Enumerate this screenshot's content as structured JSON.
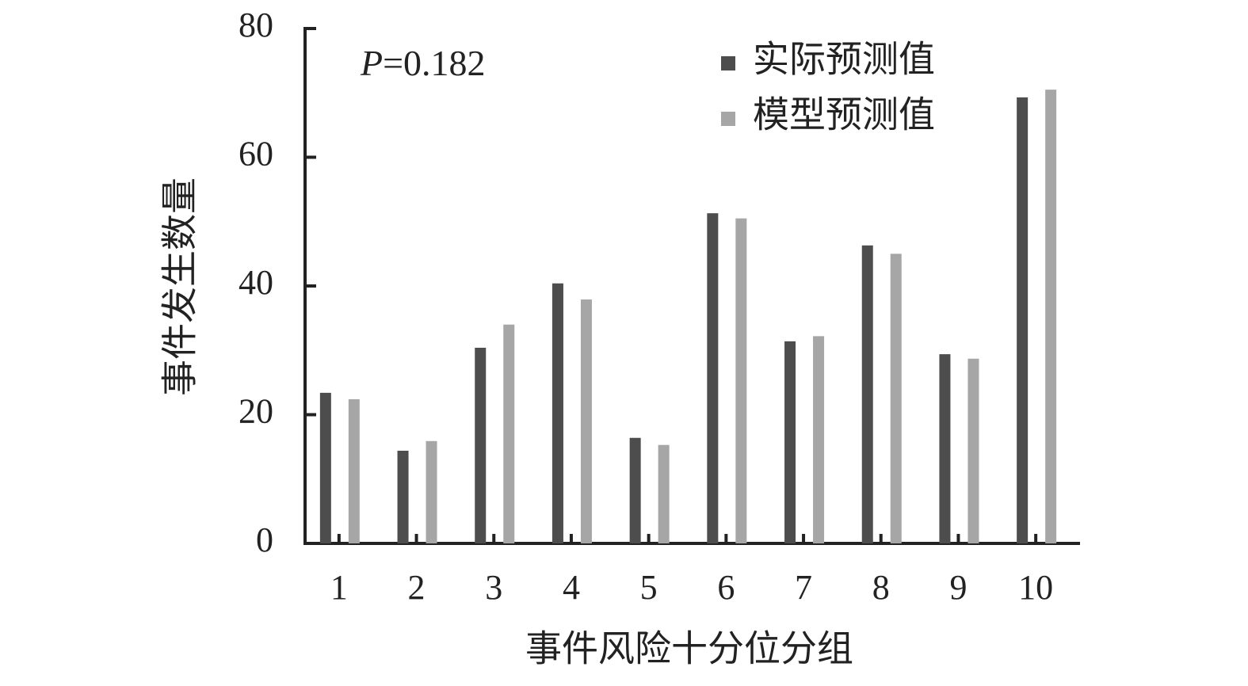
{
  "chart_data": {
    "type": "bar",
    "x_label": "事件风险十分位分组",
    "y_label": "事件发生数量",
    "annotation": {
      "symbol": "P",
      "text": "=0.182"
    },
    "categories": [
      "1",
      "2",
      "3",
      "4",
      "5",
      "6",
      "7",
      "8",
      "9",
      "10"
    ],
    "series": [
      {
        "name": "实际预测值",
        "color": "#4d4d4d",
        "values": [
          23.4,
          14.4,
          30.4,
          40.4,
          16.4,
          51.3,
          31.4,
          46.3,
          29.4,
          69.3
        ]
      },
      {
        "name": "模型预测值",
        "color": "#a6a6a6",
        "values": [
          22.4,
          15.9,
          34.0,
          37.9,
          15.3,
          50.5,
          32.2,
          45.0,
          28.7,
          70.5
        ]
      }
    ],
    "ylim": [
      0,
      80
    ],
    "yticks": [
      0,
      20,
      40,
      60,
      80
    ],
    "grid": false,
    "legend": "top-right"
  }
}
